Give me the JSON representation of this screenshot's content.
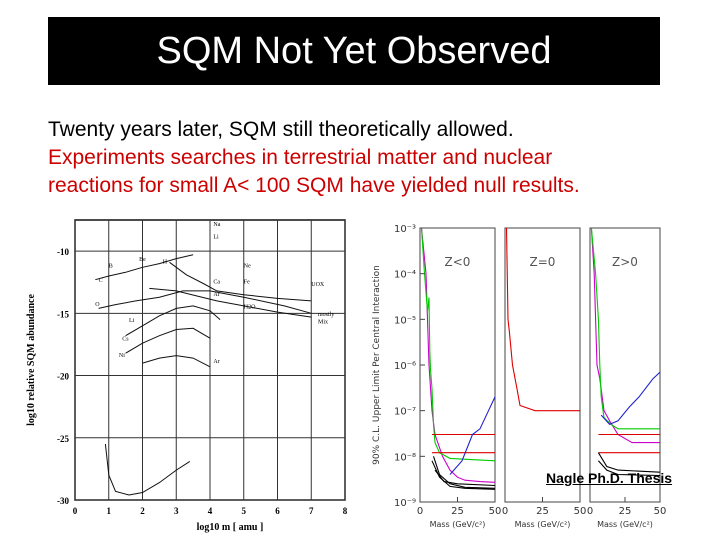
{
  "slide": {
    "title": "SQM Not Yet Observed",
    "line1": "Twenty years later, SQM still theoretically allowed.",
    "line2": "Experiments searches in terrestrial matter and nuclear",
    "line3": "reactions for small A< 100 SQM have yielded null results.",
    "credit": "Nagle Ph.D. Thesis",
    "text_color": "#000000",
    "highlight_color": "#cc0000",
    "title_bg": "#000000"
  },
  "chart_data": [
    {
      "type": "line",
      "ylabel": "log10 relative SQM abundance",
      "xlabel": "log10 m [ amu ]",
      "x_ticks": [
        "0",
        "1",
        "2",
        "3",
        "4",
        "5",
        "6",
        "7",
        "8"
      ],
      "y_ticks": [
        "-10",
        "-15",
        "-20",
        "-25",
        "-30"
      ],
      "xlim": [
        0,
        8
      ],
      "ylim": [
        -30,
        -7.5
      ],
      "grid": true,
      "annotations": [
        "Na",
        "Li",
        "Be",
        "B",
        "C",
        "O",
        "Ne",
        "Fe",
        "UOX",
        "Ca",
        "H",
        "Ar",
        "Li",
        "H2O",
        "Cs",
        "Ni",
        "Ar",
        "mostly",
        "Mix"
      ],
      "series": [
        {
          "values": [
            [
              0.6,
              -12.3
            ],
            [
              1.0,
              -12.0
            ],
            [
              1.5,
              -11.7
            ],
            [
              2.0,
              -11.3
            ],
            [
              2.5,
              -11.0
            ],
            [
              3.0,
              -10.6
            ],
            [
              3.5,
              -10.3
            ]
          ]
        },
        {
          "values": [
            [
              0.7,
              -14.6
            ],
            [
              1.2,
              -14.3
            ],
            [
              1.8,
              -14.0
            ],
            [
              2.5,
              -13.7
            ],
            [
              3.2,
              -13.2
            ],
            [
              4.0,
              -13.2
            ],
            [
              5.0,
              -13.7
            ],
            [
              6.2,
              -14.4
            ],
            [
              7.0,
              -15.0
            ]
          ]
        },
        {
          "values": [
            [
              2.8,
              -10.9
            ],
            [
              3.3,
              -11.9
            ],
            [
              3.8,
              -12.6
            ],
            [
              4.2,
              -13.2
            ],
            [
              5.0,
              -13.5
            ],
            [
              6.0,
              -13.8
            ],
            [
              7.0,
              -14.0
            ]
          ]
        },
        {
          "values": [
            [
              2.2,
              -13.0
            ],
            [
              3.0,
              -13.2
            ],
            [
              3.6,
              -13.6
            ],
            [
              4.2,
              -14.0
            ],
            [
              5.0,
              -14.4
            ],
            [
              6.0,
              -14.9
            ],
            [
              7.0,
              -15.3
            ]
          ]
        },
        {
          "values": [
            [
              1.5,
              -16.8
            ],
            [
              2.0,
              -16.0
            ],
            [
              2.5,
              -15.2
            ],
            [
              3.0,
              -14.6
            ],
            [
              3.5,
              -14.4
            ],
            [
              4.0,
              -14.8
            ],
            [
              4.3,
              -15.5
            ]
          ]
        },
        {
          "values": [
            [
              1.5,
              -18.2
            ],
            [
              2.0,
              -17.4
            ],
            [
              2.5,
              -16.8
            ],
            [
              3.0,
              -16.3
            ],
            [
              3.5,
              -16.2
            ],
            [
              4.0,
              -17.0
            ]
          ]
        },
        {
          "values": [
            [
              2.0,
              -19.0
            ],
            [
              2.5,
              -18.6
            ],
            [
              3.0,
              -18.4
            ],
            [
              3.5,
              -18.6
            ],
            [
              4.0,
              -19.3
            ]
          ]
        },
        {
          "values": [
            [
              0.9,
              -25.5
            ],
            [
              1.0,
              -28.0
            ],
            [
              1.2,
              -29.3
            ],
            [
              1.6,
              -29.6
            ],
            [
              2.0,
              -29.4
            ],
            [
              2.5,
              -28.6
            ],
            [
              3.0,
              -27.6
            ],
            [
              3.4,
              -26.9
            ]
          ]
        }
      ]
    },
    {
      "type": "line",
      "ylabel": "90% C.L. Upper Limit Per Central Interaction",
      "xlabel": "Mass (GeV/c²)",
      "y_scale": "log",
      "y_ticks": [
        "10⁻³",
        "10⁻⁴",
        "10⁻⁵",
        "10⁻⁶",
        "10⁻⁷",
        "10⁻⁸",
        "10⁻⁹"
      ],
      "x_ticks": [
        "0",
        "25",
        "50"
      ],
      "ylim": [
        1e-09,
        0.001
      ],
      "xlim": [
        0,
        50
      ],
      "panels": [
        {
          "label": "Z<0",
          "series": [
            {
              "color": "#cc00cc",
              "values": [
                [
                  1,
                  0.001
                ],
                [
                  4,
                  0.0001
                ],
                [
                  6,
                  1e-06
                ],
                [
                  8,
                  1e-07
                ],
                [
                  10,
                  3e-08
                ],
                [
                  15,
                  1e-08
                ],
                [
                  20,
                  5e-09
                ],
                [
                  25,
                  3.5e-09
                ],
                [
                  30,
                  3e-09
                ],
                [
                  40,
                  2.8e-09
                ],
                [
                  50,
                  2.7e-09
                ]
              ]
            },
            {
              "color": "#00cc00",
              "values": [
                [
                  1,
                  0.001
                ],
                [
                  3,
                  0.0001
                ],
                [
                  5,
                  1.5e-05
                ],
                [
                  6,
                  3e-05
                ],
                [
                  6.5,
                  2e-06
                ],
                [
                  7,
                  8e-07
                ],
                [
                  8,
                  3e-07
                ],
                [
                  9,
                  5e-08
                ],
                [
                  10,
                  2e-08
                ],
                [
                  13,
                  1.2e-08
                ],
                [
                  20,
                  9e-09
                ],
                [
                  50,
                  8e-09
                ]
              ]
            },
            {
              "color": "#dd0000",
              "values": [
                [
                  8,
                  3e-08
                ],
                [
                  15,
                  3e-08
                ],
                [
                  25,
                  3e-08
                ],
                [
                  50,
                  3e-08
                ]
              ]
            },
            {
              "color": "#dd0000",
              "values": [
                [
                  8,
                  1.2e-08
                ],
                [
                  50,
                  1.2e-08
                ]
              ]
            },
            {
              "color": "#000000",
              "values": [
                [
                  9,
                  1e-08
                ],
                [
                  13,
                  4e-09
                ],
                [
                  20,
                  2.5e-09
                ],
                [
                  30,
                  2.1e-09
                ],
                [
                  50,
                  2e-09
                ]
              ]
            },
            {
              "color": "#000000",
              "values": [
                [
                  8,
                  8e-09
                ],
                [
                  13,
                  3.5e-09
                ],
                [
                  20,
                  2.2e-09
                ],
                [
                  30,
                  2e-09
                ],
                [
                  50,
                  1.9e-09
                ]
              ]
            },
            {
              "color": "#000000",
              "values": [
                [
                  10,
                  5e-09
                ],
                [
                  16,
                  2.8e-09
                ],
                [
                  25,
                  2.5e-09
                ],
                [
                  50,
                  2.3e-09
                ]
              ]
            },
            {
              "color": "#2222cc",
              "values": [
                [
                  20,
                  4e-09
                ],
                [
                  28,
                  8e-09
                ],
                [
                  35,
                  3e-08
                ],
                [
                  40,
                  4e-08
                ],
                [
                  45,
                  9e-08
                ],
                [
                  50,
                  2e-07
                ]
              ]
            }
          ]
        },
        {
          "label": "Z=0",
          "series": [
            {
              "color": "#dd0000",
              "values": [
                [
                  1,
                  0.001
                ],
                [
                  2,
                  1e-05
                ],
                [
                  3,
                  5e-06
                ],
                [
                  5,
                  1e-06
                ],
                [
                  8,
                  3e-07
                ],
                [
                  10,
                  1.3e-07
                ],
                [
                  20,
                  1e-07
                ],
                [
                  50,
                  1e-07
                ]
              ]
            }
          ]
        },
        {
          "label": "Z>0",
          "series": [
            {
              "color": "#cc00cc",
              "values": [
                [
                  1,
                  0.001
                ],
                [
                  3,
                  0.0001
                ],
                [
                  5,
                  1e-06
                ],
                [
                  7,
                  5e-07
                ],
                [
                  10,
                  1e-07
                ],
                [
                  14,
                  6e-08
                ],
                [
                  20,
                  3e-08
                ],
                [
                  30,
                  2e-08
                ],
                [
                  50,
                  2e-08
                ]
              ]
            },
            {
              "color": "#00cc00",
              "values": [
                [
                  1,
                  0.001
                ],
                [
                  4,
                  0.0001
                ],
                [
                  6,
                  1e-05
                ],
                [
                  7,
                  1e-06
                ],
                [
                  8,
                  2e-07
                ],
                [
                  10,
                  7e-08
                ],
                [
                  15,
                  5e-08
                ],
                [
                  20,
                  4e-08
                ],
                [
                  50,
                  4e-08
                ]
              ]
            },
            {
              "color": "#dd0000",
              "values": [
                [
                  6,
                  3e-08
                ],
                [
                  50,
                  3e-08
                ]
              ]
            },
            {
              "color": "#dd0000",
              "values": [
                [
                  6,
                  1.2e-08
                ],
                [
                  50,
                  1.2e-08
                ]
              ]
            },
            {
              "color": "#000000",
              "values": [
                [
                  6,
                  1.2e-08
                ],
                [
                  12,
                  6e-09
                ],
                [
                  20,
                  5e-09
                ],
                [
                  50,
                  4.5e-09
                ]
              ]
            },
            {
              "color": "#000000",
              "values": [
                [
                  6,
                  8e-09
                ],
                [
                  12,
                  5e-09
                ],
                [
                  20,
                  4e-09
                ],
                [
                  50,
                  3.8e-09
                ]
              ]
            },
            {
              "color": "#2222cc",
              "values": [
                [
                  8,
                  8e-08
                ],
                [
                  14,
                  5e-08
                ],
                [
                  20,
                  6e-08
                ],
                [
                  28,
                  1.2e-07
                ],
                [
                  35,
                  2e-07
                ],
                [
                  45,
                  5e-07
                ],
                [
                  50,
                  7e-07
                ]
              ]
            }
          ]
        }
      ]
    }
  ]
}
